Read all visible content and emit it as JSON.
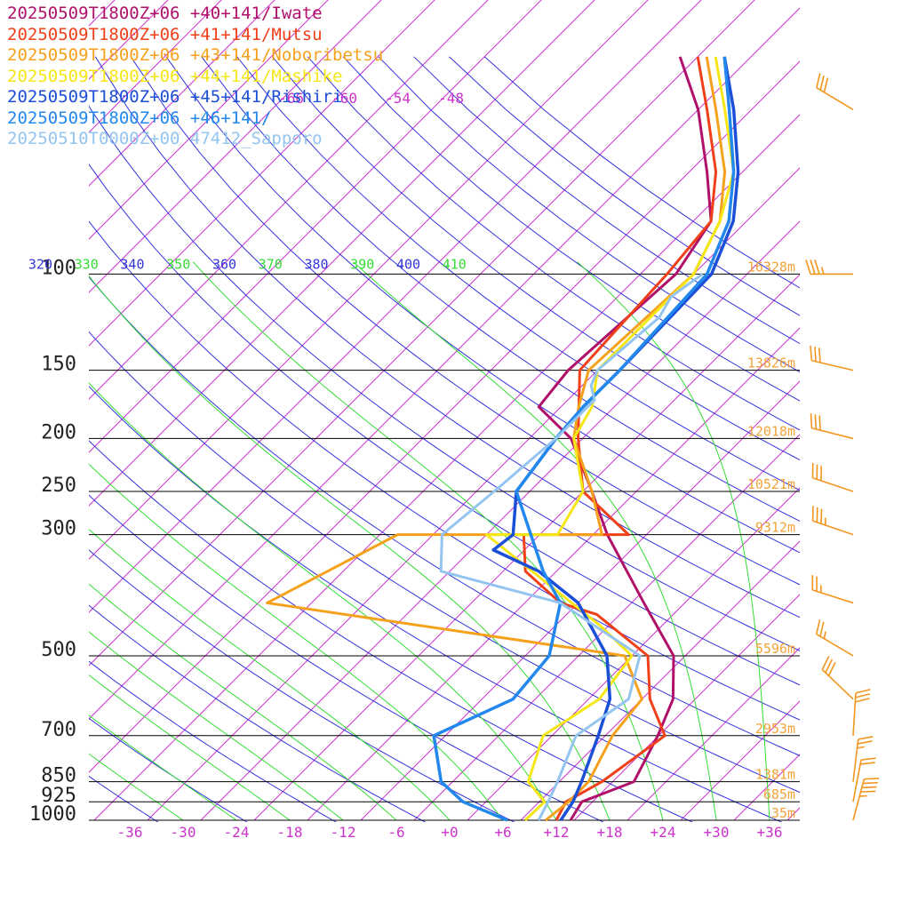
{
  "chart_data": {
    "type": "line",
    "title": "",
    "xlabel": "",
    "ylabel": "",
    "pressure_levels": [
      100,
      150,
      200,
      250,
      300,
      500,
      700,
      850,
      925,
      1000
    ],
    "x_ticks": [
      "-36",
      "-30",
      "-24",
      "-18",
      "-12",
      "-6",
      "+0",
      "+6",
      "+12",
      "+18",
      "+24",
      "+30",
      "+36"
    ],
    "height_labels": [
      {
        "p": 100,
        "text": "16328m"
      },
      {
        "p": 150,
        "text": "13826m"
      },
      {
        "p": 200,
        "text": "12018m"
      },
      {
        "p": 250,
        "text": "10521m"
      },
      {
        "p": 300,
        "text": "9312m"
      },
      {
        "p": 500,
        "text": "5596m"
      },
      {
        "p": 700,
        "text": "2953m"
      },
      {
        "p": 850,
        "text": "1381m"
      },
      {
        "p": 925,
        "text": "685m"
      },
      {
        "p": 1000,
        "text": "35m"
      }
    ],
    "theta_labels": [
      "320",
      "330",
      "340",
      "350",
      "360",
      "370",
      "380",
      "390",
      "400",
      "410"
    ],
    "mixing_labels": [
      "-66",
      "-60",
      "-54",
      "-48"
    ],
    "colors": {
      "isotherm": "#cc33cc",
      "dry_adiabat": "#3333dd",
      "moist_adiabat": "#33dd33",
      "isobar": "#000000",
      "height_label": "#f2a33a",
      "wind_barb": "#f2961e"
    },
    "series": [
      {
        "name": "20250509T1800Z+06 +40+141/Iwate",
        "color": "#b0106a",
        "width": 3,
        "points": [
          [
            1000,
            13.6
          ],
          [
            925,
            12.8
          ],
          [
            850,
            16.4
          ],
          [
            700,
            13.9
          ],
          [
            600,
            11.5
          ],
          [
            500,
            6.7
          ],
          [
            400,
            -2.6
          ],
          [
            300,
            -14.4
          ],
          [
            250,
            -21
          ],
          [
            200,
            -29.3
          ],
          [
            175,
            -36.5
          ],
          [
            150,
            -37.3
          ],
          [
            100,
            -36
          ],
          [
            80,
            -38
          ],
          [
            65,
            -44
          ],
          [
            50,
            -52
          ],
          [
            40,
            -60
          ]
        ]
      },
      {
        "name": "20250509T1800Z+06 +41+141/Mutsu",
        "color": "#f0401a",
        "width": 3,
        "points": [
          [
            1000,
            12
          ],
          [
            925,
            11
          ],
          [
            850,
            12.8
          ],
          [
            700,
            14.7
          ],
          [
            600,
            8.9
          ],
          [
            500,
            3.8
          ],
          [
            420,
            -6.6
          ],
          [
            400,
            -12
          ],
          [
            350,
            -19.5
          ],
          [
            300,
            -23.8
          ],
          [
            300,
            -12
          ],
          [
            250,
            -22
          ],
          [
            200,
            -28.5
          ],
          [
            150,
            -36
          ],
          [
            100,
            -37
          ],
          [
            80,
            -38
          ],
          [
            65,
            -43
          ],
          [
            50,
            -51
          ],
          [
            40,
            -58
          ]
        ]
      },
      {
        "name": "20250509T1800Z+06 +43+141/Noboribetsu",
        "color": "#f6a11c",
        "width": 3,
        "points": [
          [
            1000,
            10.8
          ],
          [
            925,
            11.3
          ],
          [
            850,
            11.3
          ],
          [
            700,
            8.8
          ],
          [
            600,
            8
          ],
          [
            500,
            1.2
          ],
          [
            400,
            -45
          ],
          [
            300,
            -38
          ],
          [
            300,
            -15
          ],
          [
            250,
            -21
          ],
          [
            200,
            -29
          ],
          [
            175,
            -32
          ],
          [
            150,
            -35
          ],
          [
            100,
            -34
          ],
          [
            80,
            -37
          ],
          [
            65,
            -42
          ],
          [
            50,
            -50
          ],
          [
            40,
            -57
          ]
        ]
      },
      {
        "name": "20250509T1800Z+06 +44+141/Mashike",
        "color": "#f5e616",
        "width": 3,
        "points": [
          [
            1000,
            8.5
          ],
          [
            925,
            8.6
          ],
          [
            850,
            4.5
          ],
          [
            700,
            1
          ],
          [
            600,
            3.2
          ],
          [
            500,
            2
          ],
          [
            440,
            -5
          ],
          [
            300,
            -28
          ],
          [
            300,
            -20
          ],
          [
            250,
            -22
          ],
          [
            200,
            -29
          ],
          [
            175,
            -30.5
          ],
          [
            150,
            -34
          ],
          [
            100,
            -34
          ],
          [
            80,
            -37
          ],
          [
            65,
            -41
          ],
          [
            50,
            -49
          ],
          [
            40,
            -56
          ]
        ]
      },
      {
        "name": "20250509T1800Z+06 +45+141/Rishiri",
        "color": "#1c4fd8",
        "width": 3.5,
        "points": [
          [
            1000,
            12.5
          ],
          [
            925,
            11.8
          ],
          [
            850,
            10.5
          ],
          [
            700,
            7.2
          ],
          [
            600,
            4.4
          ],
          [
            500,
            -0.8
          ],
          [
            400,
            -10
          ],
          [
            350,
            -18
          ],
          [
            320,
            -25.5
          ],
          [
            300,
            -25
          ],
          [
            250,
            -29.5
          ],
          [
            200,
            -31
          ],
          [
            175,
            -31.5
          ],
          [
            150,
            -31.5
          ],
          [
            100,
            -32
          ],
          [
            80,
            -35.5
          ],
          [
            65,
            -40.5
          ],
          [
            50,
            -48
          ],
          [
            40,
            -55
          ]
        ]
      },
      {
        "name": "20250509T1800Z+06 +46+141/",
        "color": "#2288ee",
        "width": 3.5,
        "points": [
          [
            1000,
            6.5
          ],
          [
            925,
            -0.6
          ],
          [
            850,
            -5.3
          ],
          [
            700,
            -11.3
          ],
          [
            600,
            -6.5
          ],
          [
            500,
            -7.3
          ],
          [
            400,
            -12
          ],
          [
            350,
            -17.5
          ],
          [
            300,
            -23
          ],
          [
            250,
            -29.5
          ],
          [
            200,
            -31
          ],
          [
            175,
            -31.5
          ],
          [
            150,
            -31.5
          ],
          [
            100,
            -32.5
          ],
          [
            80,
            -36
          ],
          [
            65,
            -41
          ],
          [
            50,
            -48.5
          ],
          [
            40,
            -55
          ]
        ]
      },
      {
        "name": "20250510T0000Z+00 47412_Sapporo",
        "color": "#94c4f0",
        "width": 3,
        "points": [
          [
            1000,
            10
          ],
          [
            925,
            9
          ],
          [
            850,
            7.8
          ],
          [
            700,
            4.7
          ],
          [
            600,
            6.5
          ],
          [
            500,
            2.9
          ],
          [
            400,
            -12
          ],
          [
            350,
            -29
          ],
          [
            300,
            -33
          ],
          [
            250,
            -32
          ],
          [
            200,
            -31
          ],
          [
            170,
            -31
          ],
          [
            160,
            -33
          ],
          [
            150,
            -34
          ],
          [
            120,
            -33
          ],
          [
            110,
            -34
          ],
          [
            100,
            -33
          ]
        ]
      }
    ],
    "wind_barbs": [
      {
        "p": 1000,
        "u": -12,
        "v": -45
      },
      {
        "p": 925,
        "u": -4,
        "v": -21
      },
      {
        "p": 850,
        "u": -3,
        "v": -25
      },
      {
        "p": 700,
        "u": -2,
        "v": -32
      },
      {
        "p": 600,
        "u": 22,
        "v": -21
      },
      {
        "p": 500,
        "u": 22,
        "v": -13
      },
      {
        "p": 400,
        "u": 22,
        "v": -7
      },
      {
        "p": 300,
        "u": 35,
        "v": -12
      },
      {
        "p": 250,
        "u": 30,
        "v": -10
      },
      {
        "p": 200,
        "u": 28,
        "v": -7
      },
      {
        "p": 150,
        "u": 30,
        "v": -7
      },
      {
        "p": 100,
        "u": 33,
        "v": 0
      },
      {
        "p": 50,
        "u": 25,
        "v": -15
      },
      {
        "p": 20,
        "u": 30,
        "v": 10
      }
    ]
  }
}
